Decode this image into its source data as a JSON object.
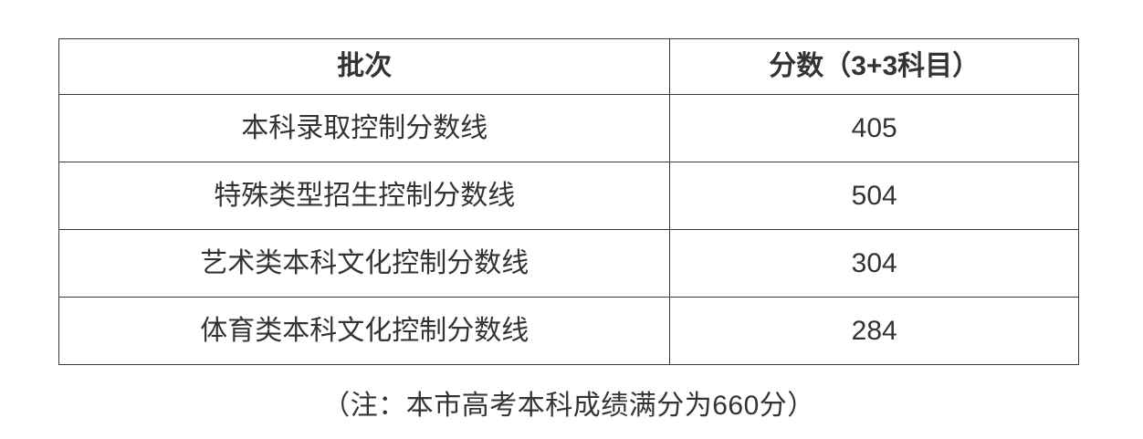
{
  "table": {
    "columns": [
      {
        "key": "batch",
        "label": "批次"
      },
      {
        "key": "score",
        "label": "分数（3+3科目）"
      }
    ],
    "rows": [
      {
        "batch": "本科录取控制分数线",
        "score": "405"
      },
      {
        "batch": "特殊类型招生控制分数线",
        "score": "504"
      },
      {
        "batch": "艺术类本科文化控制分数线",
        "score": "304"
      },
      {
        "batch": "体育类本科文化控制分数线",
        "score": "284"
      }
    ]
  },
  "note": "（注：本市高考本科成绩满分为660分）",
  "colors": {
    "border": "#3a3a3a",
    "text": "#333333",
    "background": "#ffffff"
  }
}
